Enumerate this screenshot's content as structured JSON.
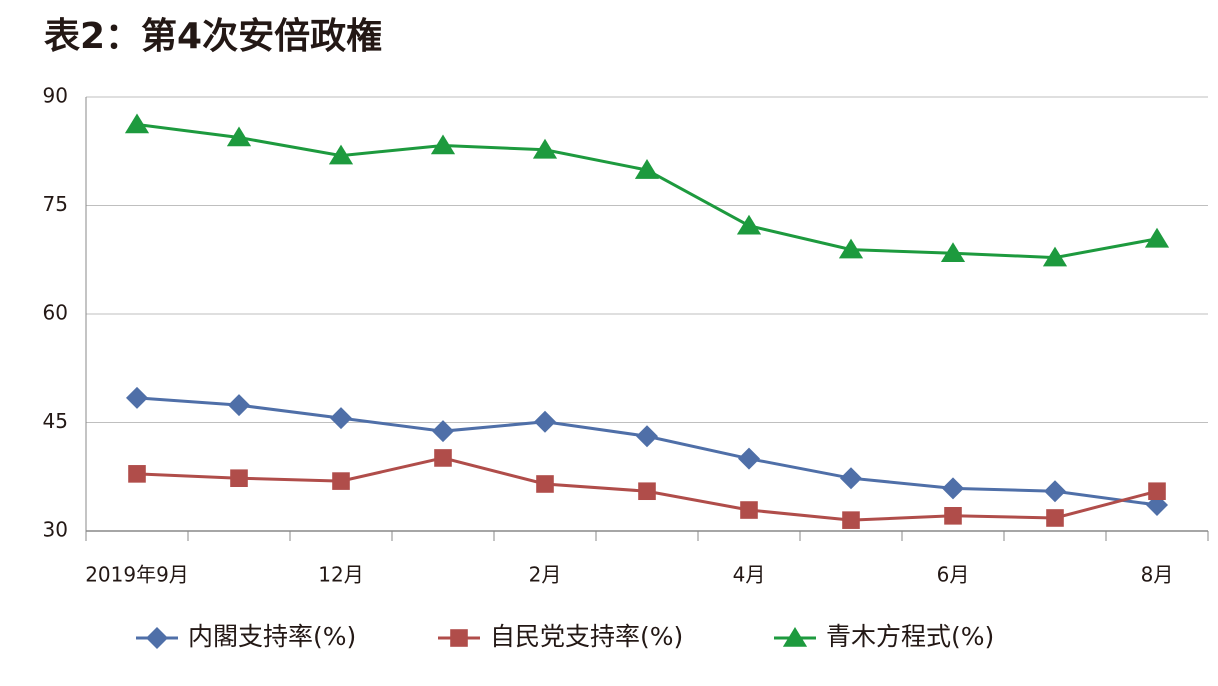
{
  "chart_data": {
    "type": "line",
    "title": "表2：第4次安倍政権",
    "categories": [
      "2019年9月",
      null,
      "12月",
      null,
      "2月",
      null,
      "4月",
      null,
      "6月",
      null,
      "8月"
    ],
    "series": [
      {
        "name": "内閣支持率(%)",
        "color": "#4f6fa8",
        "marker": "diamond",
        "values": [
          48.4,
          47.4,
          45.6,
          43.8,
          45.1,
          43.1,
          40.0,
          37.3,
          35.9,
          35.5,
          33.6
        ]
      },
      {
        "name": "自民党支持率(%)",
        "color": "#b04d4a",
        "marker": "square",
        "values": [
          37.9,
          37.3,
          36.9,
          40.1,
          36.5,
          35.5,
          32.9,
          31.5,
          32.1,
          31.8,
          35.5
        ]
      },
      {
        "name": "青木方程式(%)",
        "color": "#1d9a3e",
        "marker": "triangle",
        "values": [
          86.2,
          84.4,
          81.9,
          83.3,
          82.7,
          79.9,
          72.2,
          68.9,
          68.4,
          67.8,
          70.4
        ]
      }
    ],
    "ylim": [
      30,
      90
    ],
    "yticks": [
      30,
      45,
      60,
      75,
      90
    ],
    "grid": true
  }
}
